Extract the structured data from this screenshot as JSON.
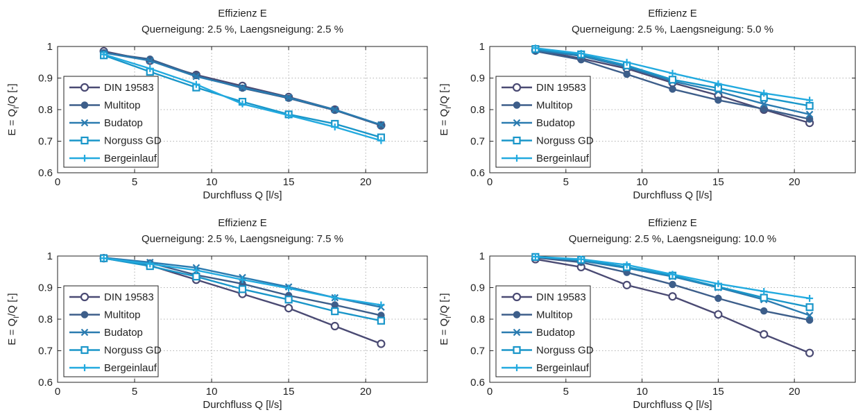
{
  "chart_data": [
    {
      "type": "line",
      "title": "Effizienz  E",
      "subtitle": "Querneigung: 2.5 %, Laengsneigung: 2.5 %",
      "xlabel": "Durchfluss  Q  [l/s]",
      "ylabel_parts": [
        "E = Q",
        "I",
        "/Q [-]"
      ],
      "xlim": [
        0,
        24
      ],
      "ylim": [
        0.6,
        1.0
      ],
      "xticks": [
        0,
        5,
        10,
        15,
        20
      ],
      "yticks": [
        0.6,
        0.7,
        0.8,
        0.9,
        1.0
      ],
      "ytick_labels": [
        "0.6",
        "0.7",
        "0.8",
        "0.9",
        "1"
      ],
      "grid": true,
      "legend_position": "left",
      "x": [
        3,
        6,
        9,
        12,
        15,
        18,
        21
      ],
      "series": [
        {
          "name": "DIN 19583",
          "marker": "circle-open",
          "color": "#4a4a73",
          "values": [
            0.985,
            0.955,
            0.91,
            0.875,
            0.84,
            0.8,
            0.75
          ]
        },
        {
          "name": "Multitop",
          "marker": "circle-filled",
          "color": "#3d5e8a",
          "values": [
            0.98,
            0.96,
            0.908,
            0.868,
            0.836,
            0.798,
            0.75
          ]
        },
        {
          "name": "Budatop",
          "marker": "x",
          "color": "#2a7bb0",
          "values": [
            0.98,
            0.955,
            0.905,
            0.87,
            0.838,
            0.8,
            0.752
          ]
        },
        {
          "name": "Norguss GD",
          "marker": "square-open",
          "color": "#1996c9",
          "values": [
            0.972,
            0.92,
            0.87,
            0.825,
            0.785,
            0.755,
            0.712
          ]
        },
        {
          "name": "Bergeinlauf",
          "marker": "plus",
          "color": "#22aadf",
          "values": [
            0.975,
            0.93,
            0.88,
            0.818,
            0.782,
            0.745,
            0.702
          ]
        }
      ]
    },
    {
      "type": "line",
      "title": "Effizienz  E",
      "subtitle": "Querneigung: 2.5 %, Laengsneigung: 5.0 %",
      "xlabel": "Durchfluss  Q  [l/s]",
      "ylabel_parts": [
        "E = Q",
        "I",
        "/Q [-]"
      ],
      "xlim": [
        0,
        24
      ],
      "ylim": [
        0.6,
        1.0
      ],
      "xticks": [
        0,
        5,
        10,
        15,
        20
      ],
      "yticks": [
        0.6,
        0.7,
        0.8,
        0.9,
        1.0
      ],
      "ytick_labels": [
        "0.6",
        "0.7",
        "0.8",
        "0.9",
        "1"
      ],
      "grid": true,
      "legend_position": "left",
      "x": [
        3,
        6,
        9,
        12,
        15,
        18,
        21
      ],
      "series": [
        {
          "name": "DIN 19583",
          "marker": "circle-open",
          "color": "#4a4a73",
          "values": [
            0.988,
            0.962,
            0.93,
            0.885,
            0.845,
            0.8,
            0.758
          ]
        },
        {
          "name": "Multitop",
          "marker": "circle-filled",
          "color": "#3d5e8a",
          "values": [
            0.985,
            0.958,
            0.912,
            0.865,
            0.83,
            0.802,
            0.77
          ]
        },
        {
          "name": "Budatop",
          "marker": "x",
          "color": "#2a7bb0",
          "values": [
            0.988,
            0.97,
            0.935,
            0.89,
            0.858,
            0.818,
            0.785
          ]
        },
        {
          "name": "Norguss GD",
          "marker": "square-open",
          "color": "#1996c9",
          "values": [
            0.992,
            0.975,
            0.94,
            0.895,
            0.868,
            0.838,
            0.812
          ]
        },
        {
          "name": "Bergeinlauf",
          "marker": "plus",
          "color": "#22aadf",
          "values": [
            0.995,
            0.978,
            0.95,
            0.915,
            0.882,
            0.852,
            0.83
          ]
        }
      ]
    },
    {
      "type": "line",
      "title": "Effizienz  E",
      "subtitle": "Querneigung: 2.5 %, Laengsneigung: 7.5 %",
      "xlabel": "Durchfluss  Q  [l/s]",
      "ylabel_parts": [
        "E = Q",
        "I",
        "/Q [-]"
      ],
      "xlim": [
        0,
        24
      ],
      "ylim": [
        0.6,
        1.0
      ],
      "xticks": [
        0,
        5,
        10,
        15,
        20
      ],
      "yticks": [
        0.6,
        0.7,
        0.8,
        0.9,
        1.0
      ],
      "ytick_labels": [
        "0.6",
        "0.7",
        "0.8",
        "0.9",
        "1"
      ],
      "grid": true,
      "legend_position": "left",
      "x": [
        3,
        6,
        9,
        12,
        15,
        18,
        21
      ],
      "series": [
        {
          "name": "DIN 19583",
          "marker": "circle-open",
          "color": "#4a4a73",
          "values": [
            0.993,
            0.97,
            0.925,
            0.88,
            0.835,
            0.778,
            0.722
          ]
        },
        {
          "name": "Multitop",
          "marker": "circle-filled",
          "color": "#3d5e8a",
          "values": [
            0.995,
            0.978,
            0.94,
            0.912,
            0.875,
            0.845,
            0.812
          ]
        },
        {
          "name": "Budatop",
          "marker": "x",
          "color": "#2a7bb0",
          "values": [
            0.995,
            0.98,
            0.963,
            0.932,
            0.902,
            0.868,
            0.838
          ]
        },
        {
          "name": "Norguss GD",
          "marker": "square-open",
          "color": "#1996c9",
          "values": [
            0.993,
            0.968,
            0.935,
            0.895,
            0.862,
            0.825,
            0.795
          ]
        },
        {
          "name": "Bergeinlauf",
          "marker": "plus",
          "color": "#22aadf",
          "values": [
            0.993,
            0.975,
            0.955,
            0.925,
            0.898,
            0.868,
            0.845
          ]
        }
      ]
    },
    {
      "type": "line",
      "title": "Effizienz  E",
      "subtitle": "Querneigung: 2.5 %, Laengsneigung: 10.0 %",
      "xlabel": "Durchfluss  Q  [l/s]",
      "ylabel_parts": [
        "E = Q",
        "I",
        "/Q [-]"
      ],
      "xlim": [
        0,
        24
      ],
      "ylim": [
        0.6,
        1.0
      ],
      "xticks": [
        0,
        5,
        10,
        15,
        20
      ],
      "yticks": [
        0.6,
        0.7,
        0.8,
        0.9,
        1.0
      ],
      "ytick_labels": [
        "0.6",
        "0.7",
        "0.8",
        "0.9",
        "1"
      ],
      "grid": true,
      "legend_position": "left",
      "x": [
        3,
        6,
        9,
        12,
        15,
        18,
        21
      ],
      "series": [
        {
          "name": "DIN 19583",
          "marker": "circle-open",
          "color": "#4a4a73",
          "values": [
            0.99,
            0.965,
            0.908,
            0.872,
            0.815,
            0.752,
            0.693
          ]
        },
        {
          "name": "Multitop",
          "marker": "circle-filled",
          "color": "#3d5e8a",
          "values": [
            0.995,
            0.98,
            0.948,
            0.91,
            0.866,
            0.826,
            0.797
          ]
        },
        {
          "name": "Budatop",
          "marker": "x",
          "color": "#2a7bb0",
          "values": [
            0.998,
            0.985,
            0.962,
            0.935,
            0.9,
            0.862,
            0.812
          ]
        },
        {
          "name": "Norguss GD",
          "marker": "square-open",
          "color": "#1996c9",
          "values": [
            0.997,
            0.988,
            0.965,
            0.938,
            0.903,
            0.868,
            0.838
          ]
        },
        {
          "name": "Bergeinlauf",
          "marker": "plus",
          "color": "#22aadf",
          "values": [
            0.998,
            0.99,
            0.972,
            0.942,
            0.912,
            0.888,
            0.866
          ]
        }
      ]
    }
  ]
}
